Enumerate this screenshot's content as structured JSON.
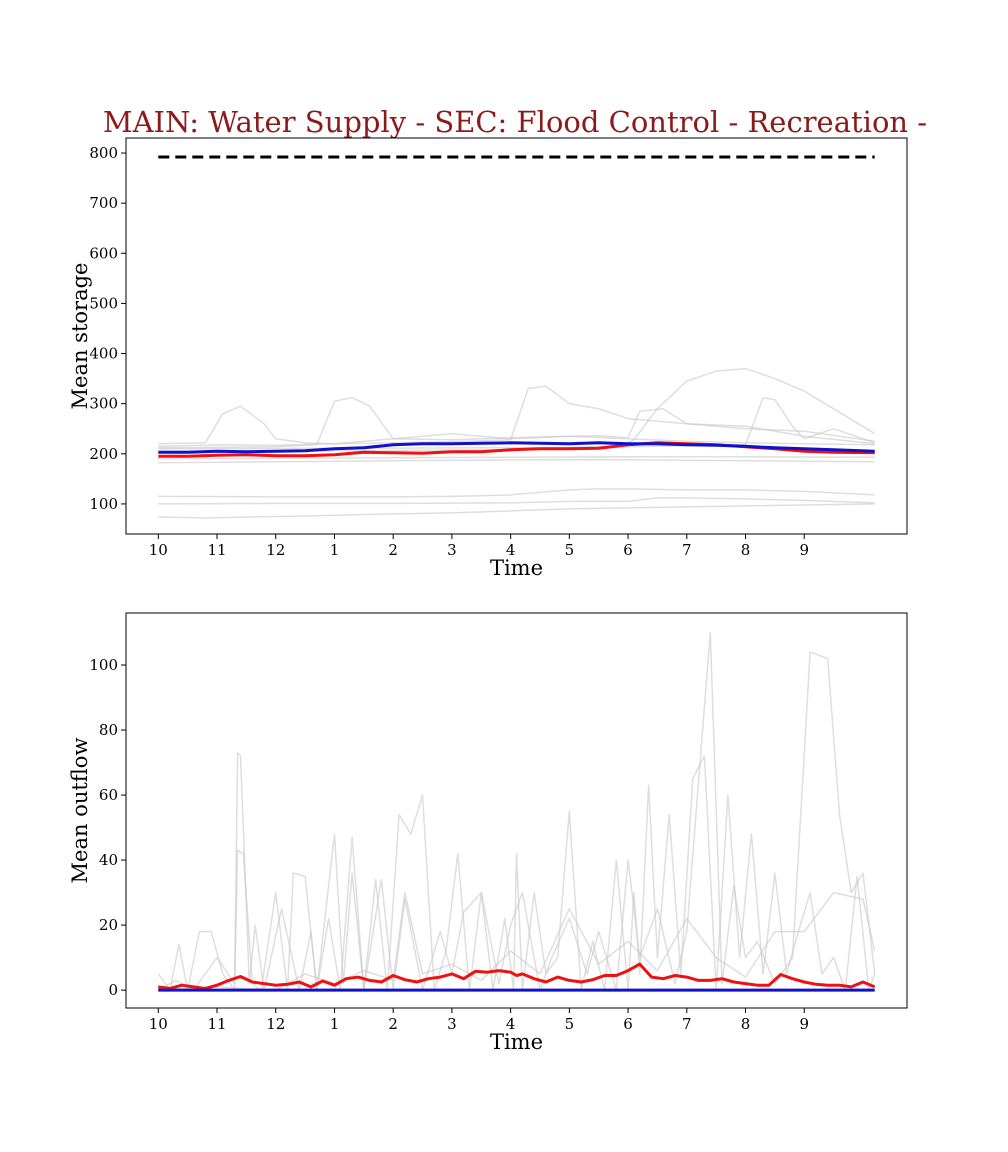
{
  "figure": {
    "title": "MAIN: Water Supply - SEC: Flood Control - Recreation -",
    "title_color": "#8b1a1a"
  },
  "colors": {
    "main_series": "#ee1111",
    "reference_series": "#1111cc",
    "background_traces": "#c8c8c8",
    "capacity_line": "#000000"
  },
  "chart_data": [
    {
      "type": "line",
      "ylabel": "Mean storage",
      "xlabel": "Time",
      "x_ticks": [
        "10",
        "11",
        "12",
        "1",
        "2",
        "3",
        "4",
        "5",
        "6",
        "7",
        "8",
        "9"
      ],
      "xlim": [
        -0.55,
        12.75
      ],
      "ylim": [
        40,
        830
      ],
      "y_ticks": [
        100,
        200,
        300,
        400,
        500,
        600,
        700,
        800
      ],
      "grid": false,
      "series": [
        {
          "role": "capacity",
          "style": "dashed",
          "x": [
            0,
            12.2
          ],
          "y": [
            792,
            792
          ]
        },
        {
          "role": "main",
          "x": [
            0,
            0.5,
            1,
            1.5,
            2,
            2.5,
            3,
            3.5,
            4,
            4.5,
            5,
            5.5,
            6,
            6.5,
            7,
            7.5,
            8,
            8.5,
            9,
            9.5,
            10,
            10.5,
            11,
            11.5,
            12.2
          ],
          "y": [
            195,
            195,
            197,
            198,
            196,
            196,
            198,
            203,
            202,
            201,
            204,
            204,
            208,
            210,
            210,
            211,
            218,
            222,
            220,
            218,
            214,
            210,
            205,
            203,
            202
          ]
        },
        {
          "role": "reference",
          "x": [
            0,
            0.5,
            1,
            1.5,
            2,
            2.5,
            3,
            3.5,
            4,
            4.5,
            5,
            5.5,
            6,
            6.5,
            7,
            7.5,
            8,
            8.5,
            9,
            9.5,
            10,
            10.5,
            11,
            11.5,
            12.2
          ],
          "y": [
            203,
            203,
            205,
            204,
            205,
            206,
            210,
            212,
            218,
            220,
            220,
            221,
            222,
            221,
            220,
            222,
            220,
            220,
            218,
            217,
            215,
            212,
            210,
            208,
            205
          ]
        },
        {
          "role": "background",
          "x": [
            0,
            1,
            2,
            3,
            4,
            5,
            6,
            6.3,
            6.6,
            7,
            7.5,
            8,
            9,
            10,
            11,
            12.2
          ],
          "y": [
            215,
            218,
            217,
            220,
            222,
            224,
            228,
            330,
            335,
            300,
            290,
            270,
            260,
            250,
            245,
            225
          ]
        },
        {
          "role": "background",
          "x": [
            0,
            0.8,
            1.1,
            1.4,
            1.8,
            2,
            2.5,
            3,
            4,
            5,
            6,
            7,
            8,
            9,
            10,
            11,
            12.2
          ],
          "y": [
            220,
            222,
            280,
            295,
            260,
            230,
            222,
            220,
            230,
            240,
            230,
            235,
            230,
            225,
            222,
            220,
            218
          ]
        },
        {
          "role": "background",
          "x": [
            0,
            2,
            2.7,
            3,
            3.3,
            3.6,
            4,
            5,
            6,
            7,
            7.5,
            8,
            8.2,
            8.6,
            9,
            10,
            11,
            12.2
          ],
          "y": [
            212,
            214,
            218,
            305,
            312,
            295,
            230,
            228,
            232,
            235,
            236,
            232,
            285,
            290,
            260,
            255,
            235,
            220
          ]
        },
        {
          "role": "background",
          "x": [
            0,
            3,
            6,
            7,
            7.8,
            8.1,
            8.5,
            9,
            9.5,
            10,
            10.5,
            11,
            11.5,
            12.2
          ],
          "y": [
            205,
            206,
            208,
            210,
            212,
            228,
            290,
            345,
            365,
            370,
            350,
            325,
            290,
            240
          ]
        },
        {
          "role": "background",
          "x": [
            0,
            3,
            6,
            7,
            7.5,
            8,
            9,
            10,
            10.3,
            10.5,
            10.8,
            11,
            11.5,
            12.2
          ],
          "y": [
            210,
            211,
            212,
            213,
            214,
            214,
            216,
            218,
            312,
            308,
            255,
            230,
            250,
            222
          ]
        },
        {
          "role": "background",
          "x": [
            0,
            2,
            4,
            6,
            8,
            10,
            12.2
          ],
          "y": [
            190,
            191,
            192,
            193,
            194,
            194,
            193
          ]
        },
        {
          "role": "background",
          "x": [
            0,
            2,
            4,
            6,
            8,
            10,
            12.2
          ],
          "y": [
            182,
            184,
            186,
            188,
            188,
            186,
            184
          ]
        },
        {
          "role": "background",
          "x": [
            0,
            2,
            4,
            5,
            6,
            7,
            7.5,
            8,
            9,
            10,
            11,
            12.2
          ],
          "y": [
            115,
            114,
            114,
            115,
            118,
            128,
            130,
            130,
            128,
            128,
            125,
            118
          ]
        },
        {
          "role": "background",
          "x": [
            0,
            2,
            4,
            6,
            7,
            8,
            8.5,
            9,
            10,
            11,
            12.2
          ],
          "y": [
            100,
            101,
            101,
            102,
            105,
            105,
            112,
            112,
            110,
            107,
            102
          ]
        },
        {
          "role": "background",
          "x": [
            0,
            0.5,
            0.8,
            1.5,
            2.5,
            4,
            5,
            6,
            7,
            8,
            9,
            10,
            12.2
          ],
          "y": [
            74,
            73,
            72,
            74,
            76,
            80,
            82,
            86,
            90,
            92,
            94,
            96,
            100
          ]
        }
      ]
    },
    {
      "type": "line",
      "ylabel": "Mean outflow",
      "xlabel": "Time",
      "x_ticks": [
        "10",
        "11",
        "12",
        "1",
        "2",
        "3",
        "4",
        "5",
        "6",
        "7",
        "8",
        "9"
      ],
      "xlim": [
        -0.55,
        12.75
      ],
      "ylim": [
        -5.5,
        116
      ],
      "y_ticks": [
        0,
        20,
        40,
        60,
        80,
        100
      ],
      "grid": false,
      "series": [
        {
          "role": "main",
          "x": [
            0,
            0.2,
            0.4,
            0.6,
            0.8,
            1,
            1.2,
            1.4,
            1.6,
            1.8,
            2,
            2.2,
            2.4,
            2.6,
            2.8,
            3,
            3.2,
            3.4,
            3.6,
            3.8,
            4,
            4.2,
            4.4,
            4.6,
            4.8,
            5,
            5.2,
            5.4,
            5.6,
            5.8,
            6,
            6.1,
            6.2,
            6.4,
            6.6,
            6.8,
            7,
            7.2,
            7.4,
            7.6,
            7.8,
            8,
            8.2,
            8.4,
            8.6,
            8.8,
            9,
            9.2,
            9.4,
            9.6,
            9.8,
            10,
            10.2,
            10.4,
            10.6,
            10.8,
            11,
            11.2,
            11.4,
            11.6,
            11.8,
            12,
            12.2
          ],
          "y": [
            1,
            0.5,
            1.5,
            1,
            0.5,
            1.5,
            3,
            4.2,
            2.5,
            2,
            1.5,
            1.8,
            2.5,
            1,
            2.8,
            1.5,
            3.5,
            4,
            3,
            2.5,
            4.5,
            3.2,
            2.5,
            3.5,
            4,
            5,
            3.5,
            5.8,
            5.5,
            6,
            5.5,
            4.5,
            5,
            3.5,
            2.5,
            4,
            3,
            2.5,
            3.2,
            4.5,
            4.5,
            6,
            8,
            4,
            3.5,
            4.5,
            4,
            3,
            3,
            3.5,
            2.5,
            2,
            1.5,
            1.5,
            4.8,
            3.5,
            2.5,
            1.8,
            1.5,
            1.5,
            1,
            2.5,
            1
          ]
        },
        {
          "role": "reference",
          "x": [
            0,
            12.2
          ],
          "y": [
            0,
            0
          ]
        },
        {
          "role": "background",
          "x": [
            0,
            0.2,
            0.35,
            0.5,
            0.7,
            0.9,
            1.1,
            1.3,
            1.35,
            1.45,
            1.6,
            1.75,
            2,
            2.2,
            2.3,
            2.5,
            2.7,
            2.9,
            3.1,
            3.3,
            3.5,
            3.7,
            3.9,
            4.1,
            4.3,
            4.5,
            4.7,
            4.9,
            5.1,
            5.3,
            5.5,
            5.7,
            5.9,
            6.05,
            6.1,
            6.2,
            6.4,
            6.6,
            6.8,
            7,
            7.2,
            7.4,
            7.6,
            7.8,
            8,
            8.1,
            8.2,
            8.35,
            8.5,
            8.7,
            8.9,
            9.1,
            9.3,
            9.5,
            9.7,
            9.9,
            10.1,
            10.3,
            10.5,
            10.7,
            10.9,
            11.1,
            11.3,
            11.5,
            11.7,
            11.9,
            12.1,
            12.2
          ],
          "y": [
            5,
            0,
            14,
            0,
            18,
            18,
            5,
            0,
            43,
            42,
            2,
            0,
            30,
            0,
            36,
            35,
            0,
            22,
            0,
            47,
            0,
            34,
            0,
            54,
            48,
            60,
            0,
            12,
            42,
            0,
            30,
            0,
            22,
            0,
            42,
            0,
            30,
            5,
            10,
            55,
            0,
            15,
            0,
            40,
            0,
            30,
            5,
            63,
            10,
            54,
            5,
            65,
            72,
            0,
            60,
            10,
            48,
            5,
            36,
            5,
            18,
            30,
            5,
            10,
            0,
            35,
            0,
            5
          ]
        },
        {
          "role": "background",
          "x": [
            0,
            0.3,
            0.6,
            1,
            1.3,
            1.35,
            1.4,
            1.55,
            1.65,
            1.8,
            2.1,
            2.4,
            2.6,
            2.7,
            3,
            3.15,
            3.3,
            3.5,
            3.8,
            4,
            4.2,
            4.5,
            4.8,
            5,
            5.2,
            5.5,
            5.8,
            6,
            6.2,
            6.5,
            6.7,
            7,
            7.3,
            7.5,
            7.8,
            8,
            8.2,
            8.5,
            8.8,
            9,
            9.2,
            9.4,
            9.6,
            9.8,
            10,
            10.2,
            10.5,
            10.8,
            11.1,
            11.4,
            11.6,
            11.8,
            12,
            12.2
          ],
          "y": [
            0,
            3,
            0,
            10,
            2,
            73,
            72,
            2,
            20,
            0,
            25,
            0,
            18,
            0,
            48,
            2,
            36,
            0,
            34,
            0,
            28,
            0,
            18,
            5,
            24,
            30,
            2,
            20,
            30,
            0,
            10,
            22,
            5,
            18,
            0,
            40,
            10,
            25,
            2,
            18,
            64,
            110,
            2,
            32,
            10,
            15,
            2,
            10,
            104,
            102,
            54,
            30,
            36,
            5
          ]
        },
        {
          "role": "background",
          "x": [
            0,
            1,
            2,
            2.5,
            3,
            3.5,
            4,
            4.2,
            4.5,
            5,
            5.5,
            6,
            6.5,
            7,
            7.5,
            8,
            8.5,
            9,
            9.5,
            10,
            10.5,
            11,
            11.5,
            12,
            12.2
          ],
          "y": [
            0,
            1,
            0,
            5,
            2,
            6,
            3,
            30,
            5,
            8,
            3,
            12,
            5,
            25,
            8,
            15,
            6,
            22,
            10,
            4,
            18,
            18,
            30,
            28,
            12
          ]
        }
      ]
    }
  ]
}
